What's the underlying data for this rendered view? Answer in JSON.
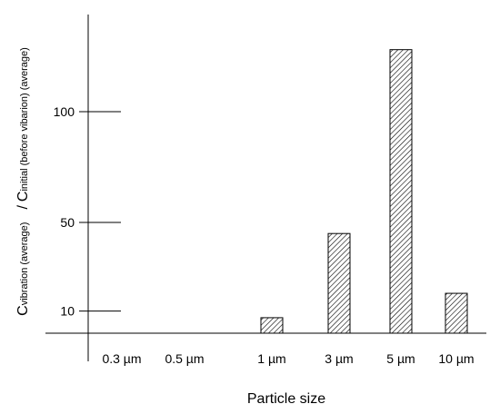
{
  "chart_data": {
    "type": "bar",
    "categories": [
      "0.3 µm",
      "0.5 µm",
      "1 µm",
      "3 µm",
      "5 µm",
      "10 µm"
    ],
    "values": [
      0,
      0,
      7,
      45,
      128,
      18
    ],
    "xlabel": "Particle size",
    "ylabel": {
      "c1": "C",
      "sub1": "vibration (average)",
      "slash": "/",
      "c2": "C",
      "sub2": "initial (before vibarion) (average)"
    },
    "yticks": [
      10,
      50,
      100
    ],
    "ylim": [
      0,
      140
    ],
    "grid": false,
    "bar_fill": "hatched",
    "colors": {
      "bar_stroke": "#000000",
      "axis": "#000000"
    }
  }
}
